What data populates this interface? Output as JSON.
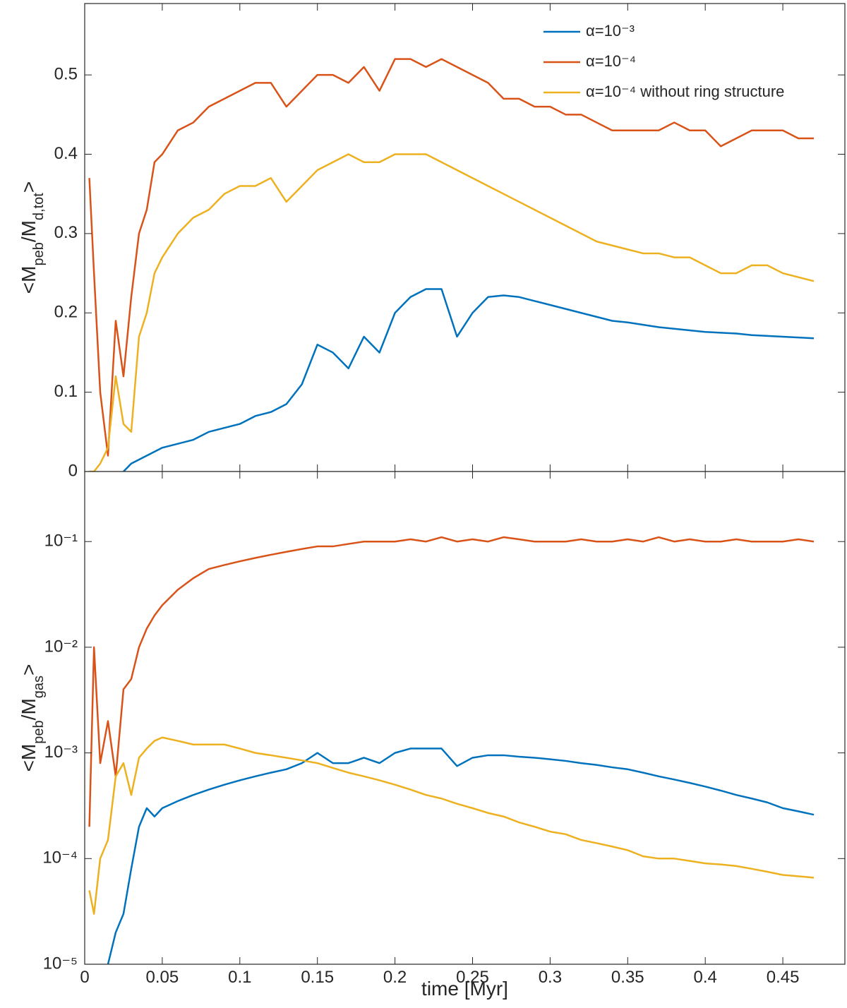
{
  "chart_data": [
    {
      "type": "line",
      "ylabel": [
        "<M",
        "peb",
        "/M",
        "d,tot",
        ">"
      ],
      "x": [
        0.003,
        0.006,
        0.01,
        0.015,
        0.02,
        0.025,
        0.03,
        0.035,
        0.04,
        0.045,
        0.05,
        0.06,
        0.07,
        0.08,
        0.09,
        0.1,
        0.11,
        0.12,
        0.13,
        0.14,
        0.15,
        0.16,
        0.17,
        0.18,
        0.19,
        0.2,
        0.21,
        0.22,
        0.23,
        0.24,
        0.25,
        0.26,
        0.27,
        0.28,
        0.29,
        0.3,
        0.31,
        0.32,
        0.33,
        0.34,
        0.35,
        0.36,
        0.37,
        0.38,
        0.39,
        0.4,
        0.41,
        0.42,
        0.43,
        0.44,
        0.45,
        0.46,
        0.47
      ],
      "series": [
        {
          "name": "α=10⁻³",
          "color": "#0072BD",
          "values": [
            null,
            null,
            null,
            null,
            null,
            0.0,
            0.01,
            0.015,
            0.02,
            0.025,
            0.03,
            0.035,
            0.04,
            0.05,
            0.055,
            0.06,
            0.07,
            0.075,
            0.085,
            0.11,
            0.16,
            0.15,
            0.13,
            0.17,
            0.15,
            0.2,
            0.22,
            0.23,
            0.23,
            0.17,
            0.2,
            0.22,
            0.222,
            0.22,
            0.215,
            0.21,
            0.205,
            0.2,
            0.195,
            0.19,
            0.188,
            0.185,
            0.182,
            0.18,
            0.178,
            0.176,
            0.175,
            0.174,
            0.172,
            0.171,
            0.17,
            0.169,
            0.168
          ]
        },
        {
          "name": "α=10⁻⁴",
          "color": "#D95319",
          "values": [
            0.37,
            0.25,
            0.1,
            0.02,
            0.19,
            0.12,
            0.22,
            0.3,
            0.33,
            0.39,
            0.4,
            0.43,
            0.44,
            0.46,
            0.47,
            0.48,
            0.49,
            0.49,
            0.46,
            0.48,
            0.5,
            0.5,
            0.49,
            0.51,
            0.48,
            0.52,
            0.52,
            0.51,
            0.52,
            0.51,
            0.5,
            0.49,
            0.47,
            0.47,
            0.46,
            0.46,
            0.45,
            0.45,
            0.44,
            0.43,
            0.43,
            0.43,
            0.43,
            0.44,
            0.43,
            0.43,
            0.41,
            0.42,
            0.43,
            0.43,
            0.43,
            0.42,
            0.42
          ]
        },
        {
          "name": "α=10⁻⁴ without ring structure",
          "color": "#EDB120",
          "values": [
            0.0,
            0.0,
            0.01,
            0.03,
            0.12,
            0.06,
            0.05,
            0.17,
            0.2,
            0.25,
            0.27,
            0.3,
            0.32,
            0.33,
            0.35,
            0.36,
            0.36,
            0.37,
            0.34,
            0.36,
            0.38,
            0.39,
            0.4,
            0.39,
            0.39,
            0.4,
            0.4,
            0.4,
            0.39,
            0.38,
            0.37,
            0.36,
            0.35,
            0.34,
            0.33,
            0.32,
            0.31,
            0.3,
            0.29,
            0.285,
            0.28,
            0.275,
            0.275,
            0.27,
            0.27,
            0.26,
            0.25,
            0.25,
            0.26,
            0.26,
            0.25,
            0.245,
            0.24
          ]
        }
      ],
      "xlim": [
        0,
        0.49
      ],
      "ylim": [
        0,
        0.59
      ],
      "yticks": [
        0,
        0.1,
        0.2,
        0.3,
        0.4,
        0.5
      ],
      "legend": "upper right"
    },
    {
      "type": "line",
      "xlabel": "time [Myr]",
      "ylabel": [
        "<M",
        "peb",
        "/M",
        "gas",
        ">"
      ],
      "x": [
        0.003,
        0.006,
        0.01,
        0.015,
        0.02,
        0.025,
        0.03,
        0.035,
        0.04,
        0.045,
        0.05,
        0.06,
        0.07,
        0.08,
        0.09,
        0.1,
        0.11,
        0.12,
        0.13,
        0.14,
        0.15,
        0.16,
        0.17,
        0.18,
        0.19,
        0.2,
        0.21,
        0.22,
        0.23,
        0.24,
        0.25,
        0.26,
        0.27,
        0.28,
        0.29,
        0.3,
        0.31,
        0.32,
        0.33,
        0.34,
        0.35,
        0.36,
        0.37,
        0.38,
        0.39,
        0.4,
        0.41,
        0.42,
        0.43,
        0.44,
        0.45,
        0.46,
        0.47
      ],
      "series": [
        {
          "color": "#0072BD",
          "values": [
            null,
            null,
            null,
            1e-05,
            2e-05,
            3e-05,
            8e-05,
            0.0002,
            0.0003,
            0.00025,
            0.0003,
            0.00035,
            0.0004,
            0.00045,
            0.0005,
            0.00055,
            0.0006,
            0.00065,
            0.0007,
            0.0008,
            0.001,
            0.0008,
            0.0008,
            0.0009,
            0.0008,
            0.001,
            0.0011,
            0.0011,
            0.0011,
            0.00075,
            0.0009,
            0.00095,
            0.00095,
            0.00092,
            0.0009,
            0.00087,
            0.00084,
            0.0008,
            0.00077,
            0.00073,
            0.0007,
            0.00065,
            0.0006,
            0.00056,
            0.00052,
            0.00048,
            0.00044,
            0.0004,
            0.00037,
            0.00034,
            0.0003,
            0.00028,
            0.00026
          ]
        },
        {
          "color": "#D95319",
          "values": [
            0.0002,
            0.01,
            0.0008,
            0.002,
            0.0006,
            0.004,
            0.005,
            0.01,
            0.015,
            0.02,
            0.025,
            0.035,
            0.045,
            0.055,
            0.06,
            0.065,
            0.07,
            0.075,
            0.08,
            0.085,
            0.09,
            0.09,
            0.095,
            0.1,
            0.1,
            0.1,
            0.105,
            0.1,
            0.11,
            0.1,
            0.105,
            0.1,
            0.11,
            0.105,
            0.1,
            0.1,
            0.1,
            0.105,
            0.1,
            0.1,
            0.105,
            0.1,
            0.11,
            0.1,
            0.105,
            0.1,
            0.1,
            0.105,
            0.1,
            0.1,
            0.1,
            0.105,
            0.1
          ]
        },
        {
          "color": "#EDB120",
          "values": [
            5e-05,
            3e-05,
            0.0001,
            0.00015,
            0.0006,
            0.0008,
            0.0004,
            0.0009,
            0.0011,
            0.0013,
            0.0014,
            0.0013,
            0.0012,
            0.0012,
            0.0012,
            0.0011,
            0.001,
            0.00095,
            0.0009,
            0.00085,
            0.0008,
            0.00072,
            0.00065,
            0.0006,
            0.00055,
            0.0005,
            0.00045,
            0.0004,
            0.00037,
            0.00033,
            0.0003,
            0.00027,
            0.00025,
            0.00022,
            0.0002,
            0.00018,
            0.00017,
            0.00015,
            0.00014,
            0.00013,
            0.00012,
            0.000105,
            0.0001,
            0.0001,
            9.5e-05,
            9e-05,
            8.8e-05,
            8.5e-05,
            8e-05,
            7.5e-05,
            7e-05,
            6.8e-05,
            6.6e-05
          ]
        }
      ],
      "xlim": [
        0,
        0.49
      ],
      "xticks": [
        0,
        0.05,
        0.1,
        0.15,
        0.2,
        0.25,
        0.3,
        0.35,
        0.4,
        0.45
      ],
      "ylim": [
        1e-05,
        0.46
      ],
      "log_y": true,
      "yticks": [
        {
          "value": 1e-05,
          "label": "10⁻⁵"
        },
        {
          "value": 0.0001,
          "label": "10⁻⁴"
        },
        {
          "value": 0.001,
          "label": "10⁻³"
        },
        {
          "value": 0.01,
          "label": "10⁻²"
        },
        {
          "value": 0.1,
          "label": "10⁻¹"
        }
      ]
    }
  ]
}
